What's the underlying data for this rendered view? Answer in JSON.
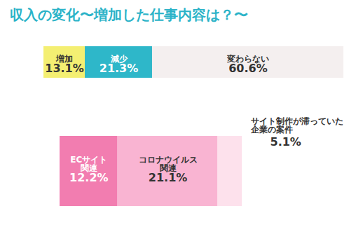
{
  "chart_data": [
    {
      "type": "bar",
      "title": "収入の変化〜増加した仕事内容は？〜",
      "orientation": "horizontal",
      "stacked": true,
      "data_labels": true,
      "tick_labels": false,
      "categories": [
        "増加",
        "減少",
        "変わらない"
      ],
      "values": [
        13.1,
        21.3,
        60.6
      ],
      "value_labels": [
        "13.1%",
        "21.3%",
        "60.6%"
      ],
      "colors": [
        "#f4ef72",
        "#2eb7c9",
        "#f4efef"
      ],
      "xlim": [
        0,
        95
      ]
    },
    {
      "type": "bar",
      "orientation": "horizontal",
      "stacked": true,
      "data_labels": true,
      "tick_labels": false,
      "categories": [
        "ECサイト\n関連",
        "コロナウイルス\n関連",
        "サイト制作が滞っていた\n企業の案件"
      ],
      "values": [
        12.2,
        21.1,
        5.1
      ],
      "value_labels": [
        "12.2%",
        "21.1%",
        "5.1%"
      ],
      "colors": [
        "#f27db0",
        "#f9b4d2",
        "#fde1ec"
      ],
      "xlim": [
        0,
        38.4
      ]
    }
  ]
}
